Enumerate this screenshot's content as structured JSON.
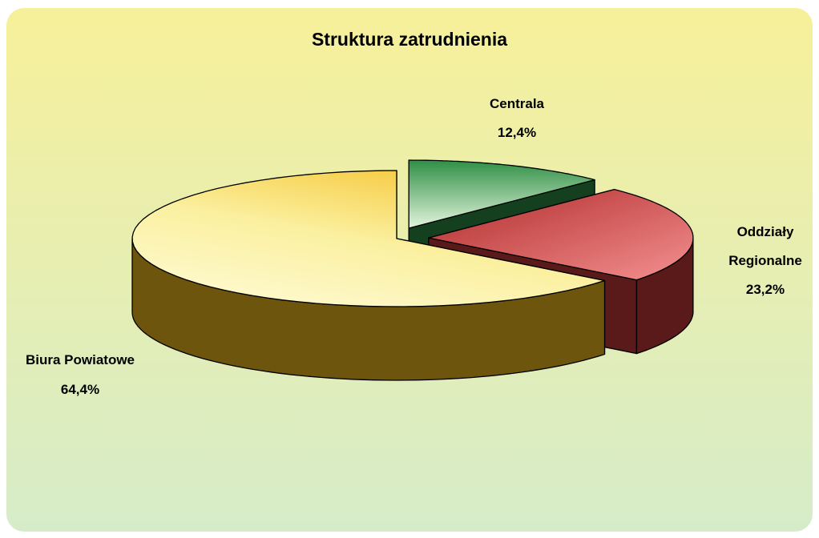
{
  "chart_data": {
    "type": "pie",
    "title": "Struktura zatrudnienia",
    "categories": [
      "Centrala",
      "Oddziały Regionalne",
      "Biura Powiatowe"
    ],
    "values": [
      12.4,
      23.2,
      64.4
    ],
    "value_labels": [
      "12,4%",
      "23,2%",
      "64,4%"
    ],
    "colors": [
      "#2f8f45",
      "#c83a3a",
      "#f4bd1e"
    ],
    "exploded": [
      true,
      true,
      false
    ]
  }
}
